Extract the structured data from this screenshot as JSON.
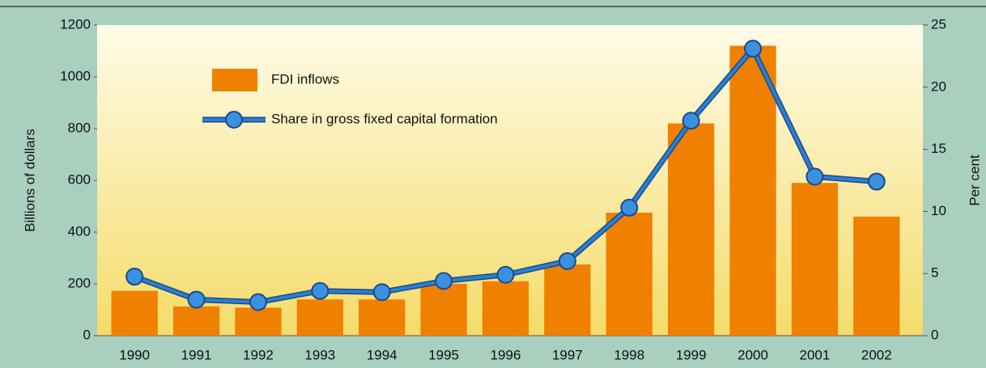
{
  "chart_data": {
    "type": "bar",
    "categories": [
      "1990",
      "1991",
      "1992",
      "1993",
      "1994",
      "1995",
      "1996",
      "1997",
      "1998",
      "1999",
      "2000",
      "2001",
      "2002"
    ],
    "series": [
      {
        "name": "FDI inflows",
        "type": "bar",
        "color": "#f08000",
        "values": [
          173,
          113,
          108,
          140,
          140,
          200,
          210,
          275,
          475,
          820,
          1120,
          590,
          460
        ]
      },
      {
        "name": "Share in gross fixed capital formation",
        "type": "line",
        "axis": "y2",
        "color": "#2a7fd0",
        "values": [
          4.75,
          2.9,
          2.7,
          3.6,
          3.5,
          4.4,
          4.9,
          6.0,
          10.3,
          17.3,
          23.1,
          12.8,
          12.4
        ]
      }
    ],
    "ylabel": "Billions of dollars",
    "y2label": "Per cent",
    "ylim": [
      0,
      1200
    ],
    "yticks": [
      0,
      200,
      400,
      600,
      800,
      1000,
      1200
    ],
    "y2lim": [
      0,
      25
    ],
    "y2ticks": [
      0,
      5,
      10,
      15,
      20,
      25
    ]
  }
}
